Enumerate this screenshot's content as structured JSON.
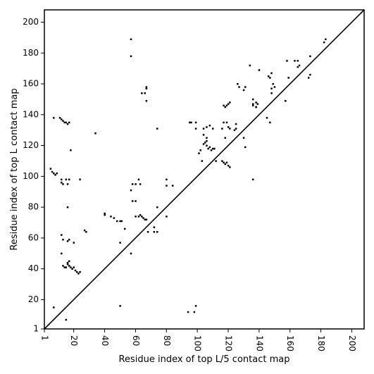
{
  "chart_data": {
    "type": "scatter",
    "title": "",
    "xlabel": "Residue index of top L/5 contact map",
    "ylabel": "Residue index of top L contact map",
    "xlim": [
      1,
      208
    ],
    "ylim": [
      1,
      208
    ],
    "xticks": [
      1,
      20,
      40,
      60,
      80,
      100,
      120,
      140,
      160,
      180,
      200
    ],
    "yticks": [
      1,
      20,
      40,
      60,
      80,
      100,
      120,
      140,
      160,
      180,
      200
    ],
    "x_tick_rotation": -90,
    "grid": false,
    "diagonal_line": true,
    "marker": "square",
    "marker_color": "#000000",
    "series": [
      {
        "values_lower": [
          [
            7,
            15
          ],
          [
            15,
            7
          ],
          [
            22,
            38
          ],
          [
            23,
            37
          ],
          [
            24,
            38
          ],
          [
            13,
            42
          ],
          [
            14,
            41
          ],
          [
            15,
            41
          ],
          [
            16,
            43
          ],
          [
            17,
            42
          ],
          [
            18,
            41
          ],
          [
            19,
            40
          ],
          [
            20,
            41
          ],
          [
            21,
            39
          ],
          [
            16,
            44
          ],
          [
            17,
            45
          ],
          [
            16,
            58
          ],
          [
            17,
            59
          ],
          [
            13,
            59
          ],
          [
            12,
            62
          ],
          [
            12,
            50
          ],
          [
            20,
            57
          ],
          [
            16,
            80
          ],
          [
            50,
            16
          ],
          [
            50,
            57
          ],
          [
            57,
            50
          ],
          [
            63,
            75
          ],
          [
            64,
            74
          ],
          [
            66,
            72
          ],
          [
            65,
            73
          ],
          [
            67,
            72
          ],
          [
            62,
            74
          ],
          [
            60,
            74
          ],
          [
            58,
            84
          ],
          [
            60,
            84
          ],
          [
            57,
            91
          ],
          [
            58,
            95
          ],
          [
            60,
            95
          ],
          [
            62,
            98
          ],
          [
            63,
            95
          ],
          [
            68,
            64
          ],
          [
            72,
            64
          ],
          [
            74,
            64
          ],
          [
            72,
            67
          ],
          [
            74,
            80
          ],
          [
            80,
            74
          ],
          [
            80,
            94
          ],
          [
            84,
            94
          ],
          [
            80,
            98
          ],
          [
            98,
            12
          ],
          [
            94,
            12
          ],
          [
            99,
            16
          ],
          [
            101,
            115
          ],
          [
            103,
            110
          ],
          [
            102,
            117
          ],
          [
            104,
            121
          ],
          [
            104,
            127
          ],
          [
            105,
            122
          ],
          [
            106,
            120
          ],
          [
            106,
            123
          ],
          [
            107,
            118
          ],
          [
            108,
            119
          ],
          [
            109,
            117
          ],
          [
            110,
            118
          ],
          [
            111,
            118
          ],
          [
            106,
            132
          ],
          [
            108,
            133
          ],
          [
            110,
            131
          ],
          [
            104,
            131
          ],
          [
            106,
            125
          ],
          [
            112,
            110
          ],
          [
            116,
            110
          ],
          [
            117,
            109
          ],
          [
            118,
            108
          ],
          [
            119,
            109
          ],
          [
            120,
            107
          ],
          [
            121,
            106
          ],
          [
            118,
            125
          ],
          [
            121,
            131
          ],
          [
            124,
            130
          ],
          [
            125,
            131
          ],
          [
            125,
            134
          ],
          [
            116,
            131
          ],
          [
            117,
            135
          ],
          [
            119,
            135
          ],
          [
            120,
            132
          ],
          [
            117,
            146
          ],
          [
            118,
            145
          ],
          [
            119,
            146
          ],
          [
            120,
            147
          ],
          [
            121,
            148
          ],
          [
            126,
            160
          ],
          [
            127,
            158
          ],
          [
            130,
            125
          ],
          [
            131,
            158
          ],
          [
            130,
            156
          ],
          [
            131,
            119
          ],
          [
            136,
            98
          ],
          [
            136,
            147
          ],
          [
            136,
            150
          ],
          [
            138,
            145
          ],
          [
            139,
            147
          ],
          [
            140,
            169
          ],
          [
            145,
            138
          ],
          [
            147,
            135
          ],
          [
            146,
            165
          ],
          [
            147,
            164
          ],
          [
            148,
            157
          ],
          [
            148,
            154
          ],
          [
            150,
            158
          ],
          [
            157,
            149
          ],
          [
            159,
            164
          ],
          [
            158,
            175
          ],
          [
            163,
            175
          ],
          [
            165,
            171
          ],
          [
            166,
            172
          ],
          [
            165,
            175
          ],
          [
            172,
            164
          ],
          [
            173,
            166
          ],
          [
            173,
            178
          ],
          [
            182,
            187
          ],
          [
            183,
            189
          ],
          [
            148,
            167
          ],
          [
            149,
            160
          ]
        ],
        "values_upper": [
          [
            5,
            105
          ],
          [
            6,
            103
          ],
          [
            7,
            102
          ],
          [
            8,
            101
          ],
          [
            9,
            102
          ],
          [
            7,
            138
          ],
          [
            11,
            138
          ],
          [
            12,
            137
          ],
          [
            13,
            136
          ],
          [
            14,
            135
          ],
          [
            15,
            135
          ],
          [
            16,
            134
          ],
          [
            17,
            135
          ],
          [
            12,
            98
          ],
          [
            12,
            96
          ],
          [
            13,
            95
          ],
          [
            15,
            98
          ],
          [
            16,
            95
          ],
          [
            17,
            98
          ],
          [
            18,
            117
          ],
          [
            24,
            98
          ],
          [
            27,
            65
          ],
          [
            28,
            64
          ],
          [
            34,
            128
          ],
          [
            40,
            75
          ],
          [
            40,
            76
          ],
          [
            44,
            74
          ],
          [
            46,
            73
          ],
          [
            48,
            71
          ],
          [
            50,
            71
          ],
          [
            51,
            71
          ],
          [
            53,
            66
          ],
          [
            57,
            189
          ],
          [
            57,
            178
          ],
          [
            64,
            154
          ],
          [
            66,
            154
          ],
          [
            67,
            157
          ],
          [
            67,
            158
          ],
          [
            67,
            149
          ],
          [
            74,
            131
          ],
          [
            95,
            135
          ],
          [
            96,
            135
          ],
          [
            99,
            135
          ],
          [
            99,
            131
          ],
          [
            134,
            172
          ],
          [
            138,
            145
          ],
          [
            138,
            148
          ],
          [
            136,
            146
          ]
        ]
      }
    ]
  }
}
